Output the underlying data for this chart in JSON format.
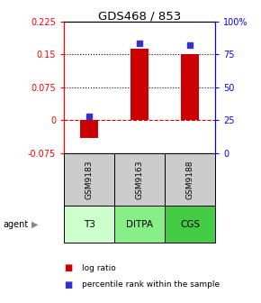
{
  "title": "GDS468 / 853",
  "samples": [
    "GSM9183",
    "GSM9163",
    "GSM9188"
  ],
  "agents": [
    "T3",
    "DITPA",
    "CGS"
  ],
  "log_ratios": [
    -0.04,
    0.162,
    0.15
  ],
  "percentile_ranks": [
    28,
    83,
    82
  ],
  "ylim_left": [
    -0.075,
    0.225
  ],
  "ylim_right": [
    0,
    100
  ],
  "left_ticks": [
    -0.075,
    0,
    0.075,
    0.15,
    0.225
  ],
  "right_ticks": [
    0,
    25,
    50,
    75,
    100
  ],
  "right_tick_labels": [
    "0",
    "25",
    "50",
    "75",
    "100%"
  ],
  "hlines": [
    0.075,
    0.15
  ],
  "zero_line": 0,
  "bar_color": "#cc0000",
  "dot_color": "#3333cc",
  "agent_colors": [
    "#ccffcc",
    "#88ee88",
    "#44cc44"
  ],
  "sample_bg": "#cccccc",
  "legend_red": "log ratio",
  "legend_blue": "percentile rank within the sample",
  "bar_width": 0.35,
  "x_positions": [
    1,
    2,
    3
  ]
}
